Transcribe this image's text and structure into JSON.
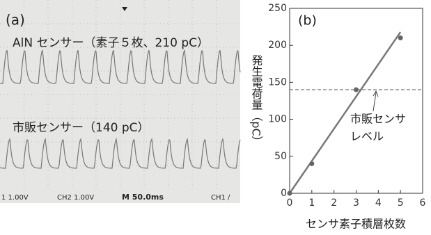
{
  "chart_data": [
    {
      "type": "oscilloscope",
      "panel_label": "(a)",
      "traces": [
        {
          "label": "AlN センサー（素子５枚、210 pC）"
        },
        {
          "label": "市販センサー（140 pC）"
        }
      ],
      "status": [
        "1 1.00V",
        "CH2 1.00V",
        "M 50.0ms",
        "CH1 ∕"
      ]
    },
    {
      "type": "scatter",
      "panel_label": "(b)",
      "x_label": "センサ素子積層枚数",
      "y_label": "発生電荷量（pC）",
      "x": [
        0,
        1,
        3,
        5
      ],
      "values": [
        0,
        40,
        140,
        210
      ],
      "color": "#666666",
      "fit": {
        "x": [
          0,
          5
        ],
        "values": [
          0,
          218
        ],
        "color": "#777777"
      },
      "reference": {
        "value": 140,
        "label": [
          "市販センサ",
          "レベル"
        ]
      },
      "xlim": [
        0,
        6
      ],
      "xticks": [
        0,
        1,
        2,
        3,
        4,
        5,
        6
      ],
      "ylim": [
        0,
        250
      ],
      "yticks": [
        0,
        50,
        100,
        150,
        200,
        250
      ]
    }
  ]
}
